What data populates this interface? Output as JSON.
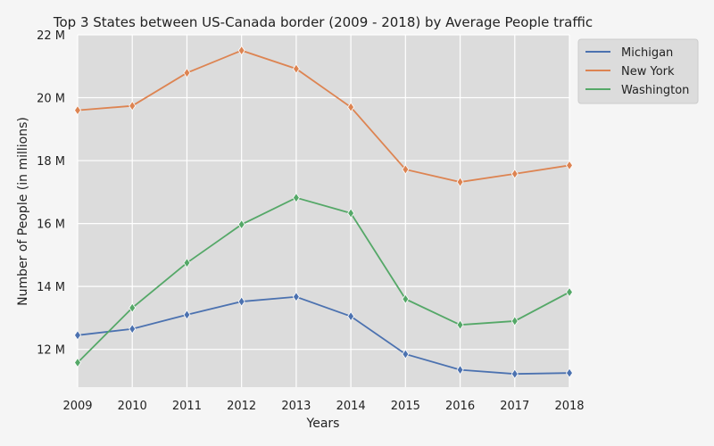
{
  "chart_data": {
    "type": "line",
    "title": "Top 3 States between US-Canada border (2009 - 2018) by Average People traffic",
    "xlabel": "Years",
    "ylabel": "Number of People (in millions)",
    "x": [
      2009,
      2010,
      2011,
      2012,
      2013,
      2014,
      2015,
      2016,
      2017,
      2018
    ],
    "x_tick_labels": [
      "2009",
      "2010",
      "2011",
      "2012",
      "2013",
      "2014",
      "2015",
      "2016",
      "2017",
      "2018"
    ],
    "xlim": [
      2009,
      2018
    ],
    "ylim": [
      10.8,
      22
    ],
    "y_ticks": [
      12,
      14,
      16,
      18,
      20,
      22
    ],
    "y_tick_labels": [
      "12 M",
      "14 M",
      "16 M",
      "18 M",
      "20 M",
      "22 M"
    ],
    "grid": true,
    "marker": "diamond",
    "legend_position": "top-right outside",
    "plot_background": "#dcdcdc",
    "series": [
      {
        "name": "Michigan",
        "color": "#4c72b0",
        "values": [
          12.45,
          12.65,
          13.1,
          13.52,
          13.67,
          13.05,
          11.85,
          11.35,
          11.22,
          11.25
        ]
      },
      {
        "name": "New York",
        "color": "#dd8452",
        "values": [
          19.6,
          19.74,
          20.79,
          21.5,
          20.92,
          19.7,
          17.72,
          17.32,
          17.58,
          17.85
        ]
      },
      {
        "name": "Washington",
        "color": "#55a868",
        "values": [
          11.58,
          13.32,
          14.75,
          15.97,
          16.82,
          16.33,
          13.6,
          12.78,
          12.9,
          13.82
        ]
      }
    ]
  }
}
